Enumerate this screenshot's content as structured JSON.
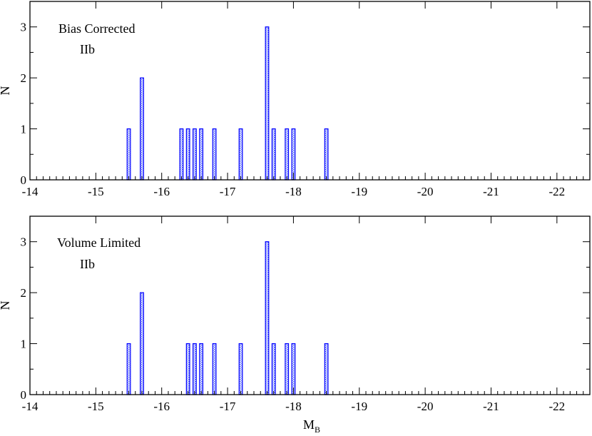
{
  "chart_data": [
    {
      "type": "bar",
      "title": "",
      "annotations": [
        "Bias Corrected",
        "IIb"
      ],
      "xlabel": "",
      "ylabel": "N",
      "xlim": [
        -14,
        -22.5
      ],
      "ylim": [
        0,
        3.5
      ],
      "x_ticks": [
        "-14",
        "-15",
        "-16",
        "-17",
        "-18",
        "-19",
        "-20",
        "-21",
        "-22"
      ],
      "y_ticks": [
        "0",
        "1",
        "2",
        "3"
      ],
      "bin_width": 0.05,
      "x": [
        -15.5,
        -15.7,
        -16.3,
        -16.4,
        -16.5,
        -16.6,
        -16.8,
        -17.2,
        -17.6,
        -17.7,
        -17.9,
        -18.0,
        -18.5
      ],
      "values": [
        1,
        2,
        1,
        1,
        1,
        1,
        1,
        1,
        3,
        1,
        1,
        1,
        1
      ],
      "grid": false,
      "color": "#0000ff"
    },
    {
      "type": "bar",
      "title": "",
      "annotations": [
        "Volume Limited",
        "IIb"
      ],
      "xlabel": "M",
      "xlabel_sub": "B",
      "ylabel": "N",
      "xlim": [
        -14,
        -22.5
      ],
      "ylim": [
        0,
        3.5
      ],
      "x_ticks": [
        "-14",
        "-15",
        "-16",
        "-17",
        "-18",
        "-19",
        "-20",
        "-21",
        "-22"
      ],
      "y_ticks": [
        "0",
        "1",
        "2",
        "3"
      ],
      "bin_width": 0.05,
      "x": [
        -15.5,
        -15.7,
        -16.4,
        -16.5,
        -16.6,
        -16.8,
        -17.2,
        -17.6,
        -17.7,
        -17.9,
        -18.0,
        -18.5
      ],
      "values": [
        1,
        2,
        1,
        1,
        1,
        1,
        1,
        3,
        1,
        1,
        1,
        1
      ],
      "grid": false,
      "color": "#0000ff"
    }
  ]
}
